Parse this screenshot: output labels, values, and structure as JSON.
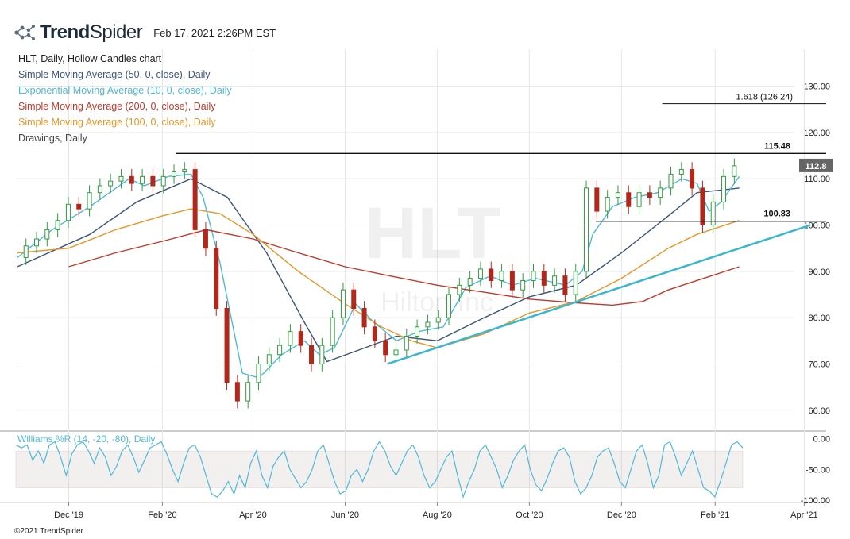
{
  "header": {
    "logo_bold": "Trend",
    "logo_light": "Spider",
    "timestamp": "Feb 17, 2021 2:26PM EST"
  },
  "legend": {
    "title": "HLT, Daily, Hollow Candles chart",
    "items": [
      {
        "label": "Simple Moving Average (50, 0, close), Daily",
        "color": "#3b5478"
      },
      {
        "label": "Exponential Moving Average (10, 0, close), Daily",
        "color": "#4fb9d6"
      },
      {
        "label": "Simple Moving Average (200, 0, close), Daily",
        "color": "#c0392b"
      },
      {
        "label": "Simple Moving Average (100, 0, close), Daily",
        "color": "#e69528"
      },
      {
        "label": "Drawings, Daily",
        "color": "#444444"
      }
    ]
  },
  "watermark": {
    "ticker": "HLT",
    "name": "Hilton Inc"
  },
  "footer": {
    "copyright": "©2021 TrendSpider"
  },
  "colors": {
    "up": "#2e9e3e",
    "down": "#b0281c",
    "trendline": "#3ab6cf",
    "grid": "#e6e6e6",
    "price_tag": "#666666"
  },
  "chart_data": [
    {
      "type": "candlestick",
      "title": "HLT, Daily, Hollow Candles chart",
      "x_ticks": [
        "Dec '19",
        "Feb '20",
        "Apr '20",
        "Jun '20",
        "Aug '20",
        "Oct '20",
        "Dec '20",
        "Feb '21",
        "Apr '21"
      ],
      "y_ticks": [
        "130.00",
        "120.00",
        "110.00",
        "100.00",
        "90.00",
        "80.00",
        "70.00",
        "60.00"
      ],
      "ylim": [
        55.5,
        138
      ],
      "x_range": [
        "2019-10-27",
        "2021-04-05"
      ],
      "last_price": "112.8",
      "closes": [
        [
          "2019-10-28",
          93
        ],
        [
          "2019-11-04",
          95.5
        ],
        [
          "2019-11-11",
          97
        ],
        [
          "2019-11-18",
          99
        ],
        [
          "2019-11-25",
          101
        ],
        [
          "2019-12-02",
          104.5
        ],
        [
          "2019-12-09",
          103.5
        ],
        [
          "2019-12-16",
          107
        ],
        [
          "2019-12-23",
          108.5
        ],
        [
          "2019-12-30",
          109.5
        ],
        [
          "2020-01-06",
          110.5
        ],
        [
          "2020-01-13",
          109
        ],
        [
          "2020-01-20",
          110.5
        ],
        [
          "2020-01-27",
          108.5
        ],
        [
          "2020-02-03",
          110.5
        ],
        [
          "2020-02-10",
          111.5
        ],
        [
          "2020-02-17",
          112
        ],
        [
          "2020-02-24",
          99
        ],
        [
          "2020-03-02",
          95
        ],
        [
          "2020-03-09",
          82
        ],
        [
          "2020-03-16",
          66
        ],
        [
          "2020-03-23",
          62
        ],
        [
          "2020-03-30",
          66
        ],
        [
          "2020-04-06",
          70
        ],
        [
          "2020-04-13",
          72
        ],
        [
          "2020-04-20",
          74
        ],
        [
          "2020-04-27",
          77
        ],
        [
          "2020-05-04",
          74
        ],
        [
          "2020-05-11",
          70
        ],
        [
          "2020-05-18",
          74
        ],
        [
          "2020-05-25",
          80
        ],
        [
          "2020-06-01",
          86
        ],
        [
          "2020-06-08",
          82
        ],
        [
          "2020-06-15",
          78
        ],
        [
          "2020-06-22",
          75
        ],
        [
          "2020-06-29",
          72
        ],
        [
          "2020-07-06",
          73
        ],
        [
          "2020-07-13",
          76
        ],
        [
          "2020-07-20",
          78
        ],
        [
          "2020-07-27",
          79
        ],
        [
          "2020-08-03",
          80
        ],
        [
          "2020-08-10",
          85
        ],
        [
          "2020-08-17",
          87
        ],
        [
          "2020-08-24",
          88.5
        ],
        [
          "2020-08-31",
          90.5
        ],
        [
          "2020-09-07",
          88
        ],
        [
          "2020-09-14",
          90
        ],
        [
          "2020-09-21",
          86
        ],
        [
          "2020-09-28",
          88
        ],
        [
          "2020-10-05",
          90
        ],
        [
          "2020-10-12",
          87
        ],
        [
          "2020-10-19",
          89
        ],
        [
          "2020-10-26",
          85
        ],
        [
          "2020-11-02",
          90
        ],
        [
          "2020-11-09",
          108
        ],
        [
          "2020-11-16",
          103
        ],
        [
          "2020-11-23",
          106
        ],
        [
          "2020-11-30",
          107
        ],
        [
          "2020-12-07",
          104
        ],
        [
          "2020-12-14",
          107
        ],
        [
          "2020-12-21",
          106
        ],
        [
          "2020-12-28",
          108
        ],
        [
          "2021-01-04",
          111
        ],
        [
          "2021-01-11",
          112
        ],
        [
          "2021-01-18",
          108
        ],
        [
          "2021-01-25",
          100
        ],
        [
          "2021-02-01",
          105
        ],
        [
          "2021-02-08",
          110.5
        ],
        [
          "2021-02-15",
          112.8
        ]
      ],
      "lines": [
        {
          "name": "Simple Moving Average (50, 0, close), Daily",
          "color": "#3b5478",
          "points": [
            [
              "2019-10-28",
              91
            ],
            [
              "2019-12-15",
              98
            ],
            [
              "2020-01-15",
              105
            ],
            [
              "2020-02-20",
              110
            ],
            [
              "2020-03-15",
              106
            ],
            [
              "2020-04-10",
              94
            ],
            [
              "2020-05-05",
              79
            ],
            [
              "2020-05-20",
              70.5
            ],
            [
              "2020-06-10",
              73
            ],
            [
              "2020-07-05",
              76
            ],
            [
              "2020-08-01",
              75
            ],
            [
              "2020-09-01",
              80
            ],
            [
              "2020-10-01",
              84.5
            ],
            [
              "2020-11-01",
              87
            ],
            [
              "2020-12-01",
              94
            ],
            [
              "2021-01-01",
              102
            ],
            [
              "2021-01-20",
              107
            ],
            [
              "2021-02-17",
              108
            ]
          ]
        },
        {
          "name": "Exponential Moving Average (10, 0, close), Daily",
          "color": "#4fb9d6",
          "points": [
            [
              "2019-10-28",
              93
            ],
            [
              "2019-11-20",
              99
            ],
            [
              "2019-12-15",
              104
            ],
            [
              "2020-01-10",
              110
            ],
            [
              "2020-01-20",
              108.5
            ],
            [
              "2020-02-05",
              110.5
            ],
            [
              "2020-02-20",
              111
            ],
            [
              "2020-02-28",
              106
            ],
            [
              "2020-03-10",
              92
            ],
            [
              "2020-03-25",
              68
            ],
            [
              "2020-04-05",
              67
            ],
            [
              "2020-04-20",
              72
            ],
            [
              "2020-05-05",
              75
            ],
            [
              "2020-05-15",
              72
            ],
            [
              "2020-05-25",
              73.5
            ],
            [
              "2020-06-08",
              83
            ],
            [
              "2020-06-20",
              79
            ],
            [
              "2020-07-05",
              75
            ],
            [
              "2020-07-20",
              77
            ],
            [
              "2020-08-05",
              78
            ],
            [
              "2020-08-20",
              86.5
            ],
            [
              "2020-09-05",
              89
            ],
            [
              "2020-09-20",
              87
            ],
            [
              "2020-10-05",
              88.5
            ],
            [
              "2020-10-25",
              87
            ],
            [
              "2020-11-05",
              90
            ],
            [
              "2020-11-12",
              98
            ],
            [
              "2020-11-25",
              104
            ],
            [
              "2020-12-10",
              106
            ],
            [
              "2020-12-25",
              107
            ],
            [
              "2021-01-10",
              110
            ],
            [
              "2021-01-20",
              109
            ],
            [
              "2021-01-28",
              103
            ],
            [
              "2021-02-05",
              105
            ],
            [
              "2021-02-17",
              110.5
            ]
          ]
        },
        {
          "name": "Simple Moving Average (200, 0, close), Daily",
          "color": "#c0392b",
          "points": [
            [
              "2019-12-01",
              91
            ],
            [
              "2020-01-01",
              94
            ],
            [
              "2020-02-01",
              96.5
            ],
            [
              "2020-03-01",
              99
            ],
            [
              "2020-04-01",
              97
            ],
            [
              "2020-05-01",
              94
            ],
            [
              "2020-06-01",
              91
            ],
            [
              "2020-07-01",
              89
            ],
            [
              "2020-08-01",
              87
            ],
            [
              "2020-09-01",
              85.5
            ],
            [
              "2020-10-01",
              84
            ],
            [
              "2020-11-01",
              83.2
            ],
            [
              "2020-11-25",
              82.7
            ],
            [
              "2020-12-15",
              83.5
            ],
            [
              "2021-01-01",
              86
            ],
            [
              "2021-02-17",
              91
            ]
          ]
        },
        {
          "name": "Simple Moving Average (100, 0, close), Daily",
          "color": "#e69528",
          "points": [
            [
              "2019-10-28",
              94
            ],
            [
              "2019-12-01",
              95
            ],
            [
              "2020-01-01",
              99
            ],
            [
              "2020-02-01",
              102
            ],
            [
              "2020-02-20",
              103.5
            ],
            [
              "2020-03-10",
              102.5
            ],
            [
              "2020-04-01",
              98
            ],
            [
              "2020-05-01",
              90
            ],
            [
              "2020-06-01",
              83
            ],
            [
              "2020-06-25",
              78
            ],
            [
              "2020-07-15",
              75
            ],
            [
              "2020-08-01",
              73.5
            ],
            [
              "2020-09-01",
              76.5
            ],
            [
              "2020-10-01",
              81
            ],
            [
              "2020-11-01",
              83.5
            ],
            [
              "2020-12-01",
              88.5
            ],
            [
              "2021-01-01",
              95
            ],
            [
              "2021-01-20",
              98
            ],
            [
              "2021-02-17",
              101
            ]
          ]
        }
      ],
      "drawings": [
        {
          "type": "horizontal",
          "label": "115.48",
          "value": 115.48,
          "from": "2020-02-10",
          "to": "2021-04-05"
        },
        {
          "type": "horizontal",
          "label": "100.83",
          "value": 100.83,
          "from": "2020-11-14",
          "to": "2021-04-05"
        },
        {
          "type": "fibonacci",
          "label": "1.618 (126.24)",
          "value": 126.24,
          "from": "2020-12-28",
          "to": "2021-03-31"
        },
        {
          "type": "trendline",
          "from": [
            "2020-06-29",
            70
          ],
          "to": [
            "2021-04-05",
            100
          ]
        }
      ]
    },
    {
      "type": "line",
      "title": "Williams %R (14, -20, -80), Daily",
      "y_ticks": [
        "0.00",
        "-50.00",
        "-100.00"
      ],
      "ylim": [
        -104,
        6
      ],
      "band": [
        -80,
        -20
      ],
      "series": [
        {
          "name": "Williams %R (14, -20, -80), Daily",
          "values": [
            -10,
            -15,
            -10,
            -35,
            -20,
            -40,
            -10,
            -5,
            -30,
            -60,
            -25,
            -10,
            -5,
            -20,
            -40,
            -15,
            -30,
            -60,
            -45,
            -20,
            -10,
            -30,
            -55,
            -35,
            -15,
            -10,
            -5,
            -25,
            -50,
            -70,
            -40,
            -15,
            -10,
            -30,
            -60,
            -90,
            -95,
            -85,
            -70,
            -90,
            -60,
            -80,
            -40,
            -20,
            -60,
            -80,
            -45,
            -30,
            -20,
            -50,
            -65,
            -80,
            -70,
            -50,
            -20,
            -10,
            -40,
            -70,
            -90,
            -85,
            -60,
            -50,
            -70,
            -50,
            -20,
            -5,
            -20,
            -45,
            -60,
            -40,
            -20,
            -10,
            -30,
            -60,
            -80,
            -70,
            -50,
            -30,
            -20,
            -60,
            -95,
            -70,
            -50,
            -20,
            -10,
            -30,
            -50,
            -80,
            -60,
            -35,
            -20,
            -10,
            -50,
            -75,
            -85,
            -65,
            -40,
            -20,
            -15,
            -30,
            -70,
            -90,
            -80,
            -60,
            -30,
            -20,
            -15,
            -40,
            -70,
            -80,
            -50,
            -20,
            -10,
            -40,
            -80,
            -60,
            -10,
            -5,
            -30,
            -60,
            -40,
            -20,
            -50,
            -80,
            -85,
            -95,
            -70,
            -40,
            -10,
            -5,
            -15
          ]
        }
      ]
    }
  ]
}
